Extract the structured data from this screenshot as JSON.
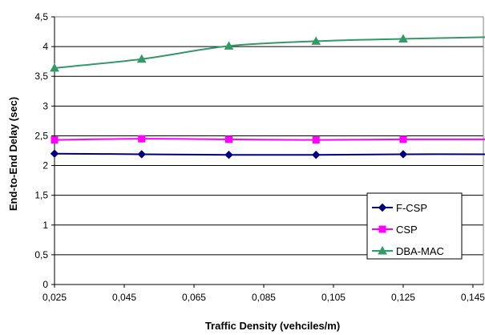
{
  "chart_data": {
    "type": "line",
    "title": "",
    "xlabel": "Traffic Density (vehciles/m)",
    "ylabel": "End-to-End Delay (sec)",
    "x": [
      0.025,
      0.05,
      0.075,
      0.1,
      0.125,
      0.15
    ],
    "x_ticks": [
      "0,025",
      "0,045",
      "0,065",
      "0,085",
      "0,105",
      "0,125",
      "0,145"
    ],
    "x_tick_values": [
      0.025,
      0.045,
      0.065,
      0.085,
      0.105,
      0.125,
      0.145
    ],
    "xlim": [
      0.025,
      0.148
    ],
    "y_ticks": [
      "0",
      "0,5",
      "1",
      "1,5",
      "2",
      "2,5",
      "3",
      "3,5",
      "4",
      "4,5"
    ],
    "y_tick_values": [
      0,
      0.5,
      1,
      1.5,
      2,
      2.5,
      3,
      3.5,
      4,
      4.5
    ],
    "ylim": [
      0,
      4.5
    ],
    "grid": "horizontal",
    "legend_position": "bottom-right",
    "series": [
      {
        "name": "F-CSP",
        "color": "#00007f",
        "marker": "diamond",
        "values": [
          2.2,
          2.19,
          2.18,
          2.18,
          2.19,
          2.19
        ]
      },
      {
        "name": "CSP",
        "color": "#ff00ff",
        "marker": "square",
        "values": [
          2.43,
          2.45,
          2.44,
          2.43,
          2.44,
          2.44
        ]
      },
      {
        "name": "DBA-MAC",
        "color": "#339966",
        "marker": "triangle",
        "values": [
          3.64,
          3.79,
          4.01,
          4.09,
          4.13,
          4.16
        ]
      }
    ]
  }
}
